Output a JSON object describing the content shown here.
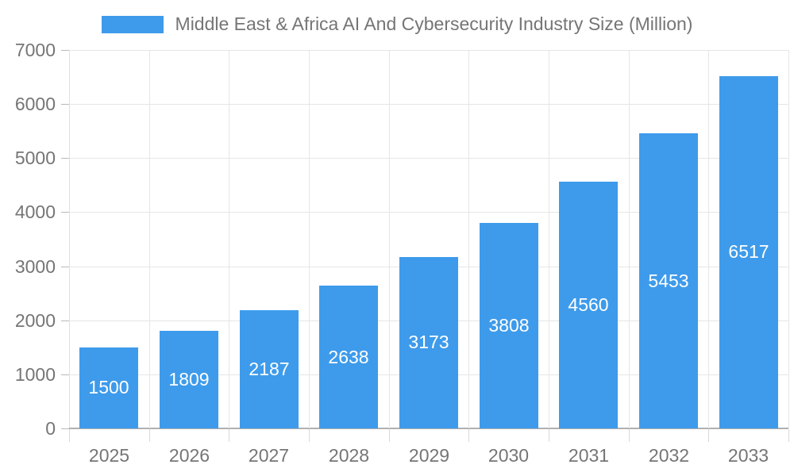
{
  "chart_data": {
    "type": "bar",
    "title": "Middle East & Africa AI And Cybersecurity Industry Size (Million)",
    "categories": [
      "2025",
      "2026",
      "2027",
      "2028",
      "2029",
      "2030",
      "2031",
      "2032",
      "2033"
    ],
    "values": [
      1500,
      1809,
      2187,
      2638,
      3173,
      3808,
      4560,
      5453,
      6517
    ],
    "bar_labels": [
      "1500",
      "1809",
      "2187",
      "2638",
      "3173",
      "3808",
      "4560",
      "5453",
      "6517"
    ],
    "y_ticks": [
      "0",
      "1000",
      "2000",
      "3000",
      "4000",
      "5000",
      "6000",
      "7000"
    ],
    "ylim": [
      0,
      7000
    ],
    "xlabel": "",
    "ylabel": "",
    "grid": true,
    "legend": {
      "position": "top",
      "label": "Middle East & Africa AI And Cybersecurity Industry Size (Million)"
    },
    "colors": {
      "bar": "#3E9BEB",
      "bar_label_text": "#ffffff",
      "grid_line": "#e6e6e6",
      "x_axis_line": "#b0b0b0",
      "y_axis_line": "#e0e0e0",
      "tick_text": "#757575",
      "legend_text": "#757575",
      "background": "#ffffff"
    }
  }
}
